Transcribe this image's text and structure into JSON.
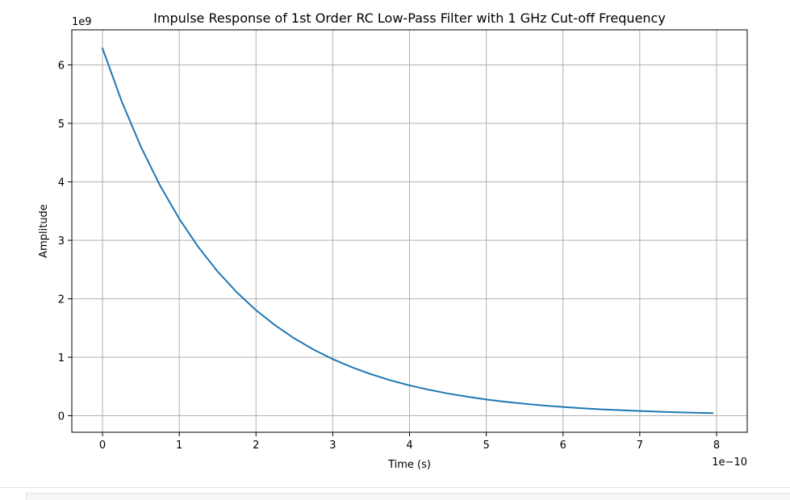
{
  "chart_data": {
    "type": "line",
    "title": "Impulse Response of 1st Order RC Low-Pass Filter with 1 GHz Cut-off Frequency",
    "xlabel": "Time (s)",
    "ylabel": "Amplitude",
    "x_scale_label": "1e−10",
    "y_scale_label": "1e9",
    "xlim": [
      -0.4,
      8.4
    ],
    "ylim": [
      -0.283,
      6.6
    ],
    "x_ticks": [
      0,
      1,
      2,
      3,
      4,
      5,
      6,
      7,
      8
    ],
    "x_tick_labels": [
      "0",
      "1",
      "2",
      "3",
      "4",
      "5",
      "6",
      "7",
      "8"
    ],
    "y_ticks": [
      0,
      1,
      2,
      3,
      4,
      5,
      6
    ],
    "y_tick_labels": [
      "0",
      "1",
      "2",
      "3",
      "4",
      "5",
      "6"
    ],
    "grid": true,
    "series": [
      {
        "color": "#1f77b4",
        "x": [
          0,
          0.25,
          0.5,
          0.75,
          1.0,
          1.25,
          1.5,
          1.75,
          2.0,
          2.25,
          2.5,
          2.75,
          3.0,
          3.25,
          3.5,
          3.75,
          4.0,
          4.25,
          4.5,
          4.75,
          5.0,
          5.25,
          5.5,
          5.75,
          6.0,
          6.25,
          6.5,
          6.75,
          7.0,
          7.25,
          7.5,
          7.75,
          7.95
        ],
        "y": [
          6.283,
          5.376,
          4.6,
          3.936,
          3.368,
          2.882,
          2.466,
          2.11,
          1.805,
          1.545,
          1.322,
          1.131,
          0.968,
          0.828,
          0.709,
          0.606,
          0.519,
          0.444,
          0.38,
          0.325,
          0.278,
          0.238,
          0.204,
          0.174,
          0.149,
          0.128,
          0.109,
          0.094,
          0.08,
          0.068,
          0.059,
          0.05,
          0.044
        ]
      }
    ]
  }
}
